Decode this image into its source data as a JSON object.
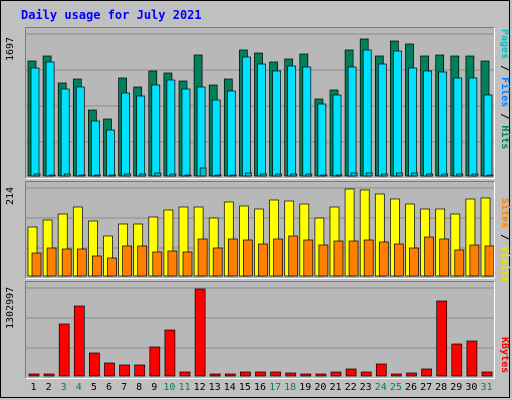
{
  "title": "Daily usage for July 2021",
  "colors": {
    "hits": "#00805c",
    "files": "#00e0ff",
    "pages": "#00c0c0",
    "visits": "#ffff00",
    "sites": "#ff8000",
    "kbytes": "#ff0000",
    "day_normal": "#000000",
    "day_weekend": "#00805c"
  },
  "chart_data": [
    {
      "type": "bar",
      "title": "Daily usage for July 2021",
      "ylabel": "Pages / Files / Hits",
      "ymax_label": "1697",
      "ylim": [
        0,
        1697
      ],
      "categories": [
        "1",
        "2",
        "3",
        "4",
        "5",
        "6",
        "7",
        "8",
        "9",
        "10",
        "11",
        "12",
        "13",
        "14",
        "15",
        "16",
        "17",
        "18",
        "19",
        "20",
        "21",
        "22",
        "23",
        "24",
        "25",
        "26",
        "27",
        "28",
        "29",
        "30",
        "31"
      ],
      "series": [
        {
          "name": "Hits",
          "values": [
            1378,
            1435,
            1106,
            1163,
            790,
            678,
            1174,
            1061,
            1253,
            1230,
            1140,
            1447,
            1083,
            1163,
            1506,
            1469,
            1366,
            1395,
            1461,
            926,
            1031,
            1509,
            1639,
            1435,
            1611,
            1582,
            1439,
            1442,
            1436,
            1431,
            1373
          ]
        },
        {
          "name": "Files",
          "values": [
            1285,
            1360,
            1035,
            1064,
            660,
            555,
            996,
            958,
            1088,
            1142,
            1035,
            1066,
            912,
            1010,
            1425,
            1334,
            1253,
            1312,
            1303,
            856,
            971,
            1303,
            1506,
            1342,
            1495,
            1296,
            1254,
            1246,
            1173,
            1170,
            966
          ]
        },
        {
          "name": "Pages",
          "values": [
            25,
            15,
            20,
            10,
            15,
            10,
            20,
            25,
            30,
            20,
            15,
            100,
            10,
            15,
            35,
            25,
            20,
            20,
            25,
            10,
            15,
            30,
            35,
            25,
            40,
            30,
            20,
            25,
            20,
            20,
            15
          ]
        }
      ]
    },
    {
      "type": "bar",
      "ylabel": "Sites / Visits",
      "ymax_label": "214",
      "ylim": [
        0,
        214
      ],
      "categories": [
        "1",
        "2",
        "3",
        "4",
        "5",
        "6",
        "7",
        "8",
        "9",
        "10",
        "11",
        "12",
        "13",
        "14",
        "15",
        "16",
        "17",
        "18",
        "19",
        "20",
        "21",
        "22",
        "23",
        "24",
        "25",
        "26",
        "27",
        "28",
        "29",
        "30",
        "31"
      ],
      "series": [
        {
          "name": "Visits",
          "values": [
            119,
            135,
            150,
            169,
            134,
            97,
            127,
            127,
            144,
            161,
            169,
            169,
            142,
            180,
            171,
            163,
            185,
            182,
            175,
            142,
            168,
            212,
            210,
            200,
            187,
            174,
            162,
            162,
            151,
            187,
            190
          ]
        },
        {
          "name": "Sites",
          "values": [
            56,
            69,
            66,
            66,
            49,
            44,
            72,
            72,
            58,
            62,
            59,
            89,
            68,
            91,
            88,
            78,
            91,
            98,
            88,
            76,
            84,
            86,
            88,
            82,
            79,
            68,
            96,
            90,
            63,
            75,
            73
          ]
        }
      ]
    },
    {
      "type": "bar",
      "ylabel": "KBytes",
      "ymax_label": "1302997",
      "ylim": [
        0,
        1302997
      ],
      "categories": [
        "1",
        "2",
        "3",
        "4",
        "5",
        "6",
        "7",
        "8",
        "9",
        "10",
        "11",
        "12",
        "13",
        "14",
        "15",
        "16",
        "17",
        "18",
        "19",
        "20",
        "21",
        "22",
        "23",
        "24",
        "25",
        "26",
        "27",
        "28",
        "29",
        "30",
        "31"
      ],
      "series": [
        {
          "name": "KBytes",
          "values": [
            34000,
            25000,
            765000,
            1033000,
            337000,
            198000,
            161000,
            161000,
            428000,
            686000,
            65000,
            1287000,
            25000,
            28000,
            57000,
            58000,
            62000,
            42000,
            25000,
            35000,
            64000,
            108000,
            57000,
            183000,
            33000,
            45000,
            99000,
            1108000,
            478000,
            520000,
            57000
          ]
        }
      ]
    }
  ],
  "right_labels": {
    "top": {
      "pages": "Pages",
      "files": "Files",
      "hits": "Hits",
      "sep": " / "
    },
    "mid": {
      "sites": "Sites",
      "visits": "Visits",
      "sep": " / "
    },
    "bottom": {
      "kbytes": "KBytes"
    }
  },
  "weekend_days": [
    "3",
    "4",
    "10",
    "11",
    "17",
    "18",
    "24",
    "25",
    "31"
  ]
}
